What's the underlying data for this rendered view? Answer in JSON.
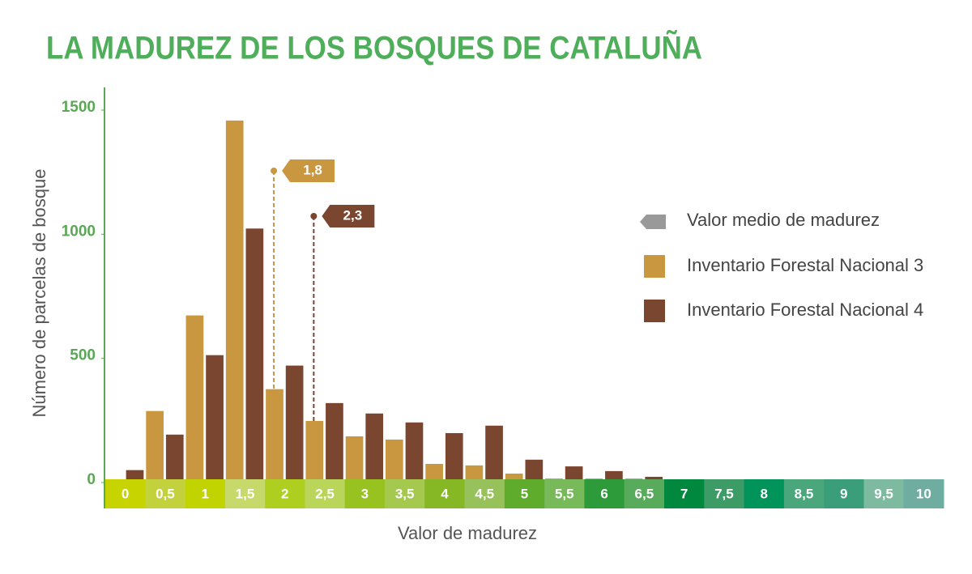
{
  "chart_data": {
    "type": "bar",
    "title": "LA MADUREZ DE LOS BOSQUES DE CATALUÑA",
    "x_label": "Valor de madurez",
    "y_label": "Número de parcelas de bosque",
    "categories": [
      "0",
      "0,5",
      "1",
      "1,5",
      "2",
      "2,5",
      "3",
      "3,5",
      "4",
      "4,5",
      "5",
      "5,5",
      "6",
      "6,5",
      "7",
      "7,5",
      "8",
      "8,5",
      "9",
      "9,5",
      "10"
    ],
    "category_colors": [
      "#c8d400",
      "#c3d23c",
      "#c2d400",
      "#c8d96b",
      "#aecf1f",
      "#b9d55a",
      "#98c21f",
      "#a5c94f",
      "#86b826",
      "#97c25b",
      "#5fab2c",
      "#78b95a",
      "#2e9b3a",
      "#59ab5c",
      "#00883e",
      "#3d9b66",
      "#00935a",
      "#4aa77c",
      "#3b9e7b",
      "#7dbaa0",
      "#6eada0"
    ],
    "series": [
      {
        "name": "Inventario Forestal Nacional 3",
        "color": "#c9973f",
        "values": [
          0,
          288,
          673,
          1458,
          376,
          248,
          186,
          173,
          75,
          69,
          36,
          16,
          16,
          16,
          0,
          0,
          0,
          0,
          0,
          0,
          0
        ],
        "mean": 1.8,
        "mean_label": "1,8"
      },
      {
        "name": "Inventario Forestal Nacional 4",
        "color": "#7b4630",
        "values": [
          50,
          193,
          513,
          1023,
          471,
          320,
          278,
          242,
          199,
          229,
          92,
          65,
          46,
          23,
          0,
          0,
          0,
          0,
          0,
          0,
          0
        ],
        "mean": 2.3,
        "mean_label": "2,3"
      }
    ],
    "mean_legend": "Valor medio de madurez",
    "mean_color": "#999999",
    "ylim": [
      0,
      1500
    ],
    "yticks": [
      0,
      500,
      1000,
      1500
    ]
  }
}
